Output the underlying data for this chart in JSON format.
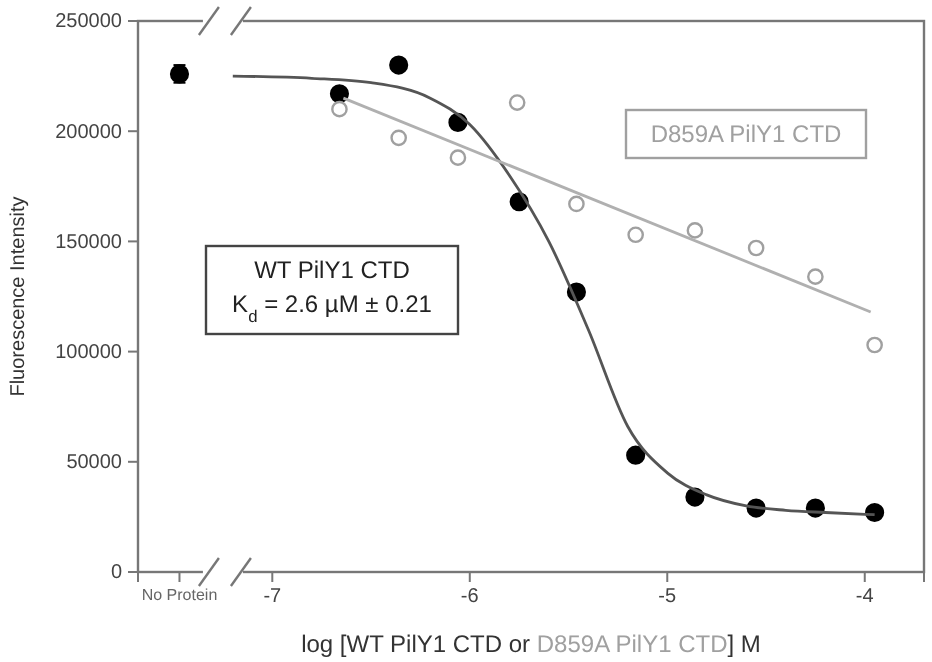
{
  "chart_data": {
    "type": "scatter",
    "xlabel": "log [WT PilY1 CTD or D859A PilY1 CTD] M",
    "ylabel": "Fluorescence Intensity",
    "xlim": [
      -7.68,
      -3.7
    ],
    "xticks": [
      {
        "value": -7.47,
        "label": "No Protein"
      },
      -7,
      -6,
      -5,
      -4
    ],
    "ylim": [
      0,
      250000
    ],
    "yticks": [
      0,
      50000,
      100000,
      150000,
      200000,
      250000
    ],
    "grid": false,
    "legend": false,
    "annotations": [
      "K$_{d}$ = 2.6 µM ± 0.21"
    ],
    "series": [
      {
        "name": "WT PilY1 CTD",
        "marker": "circle",
        "color": "#000000",
        "x": [
          -7.47,
          -6.66,
          -6.36,
          -6.06,
          -5.75,
          -5.46,
          -5.16,
          -4.86,
          -4.55,
          -4.25,
          -3.95
        ],
        "values": [
          226000,
          217000,
          230000,
          204000,
          168000,
          127000,
          53000,
          34000,
          29000,
          29000,
          27000
        ],
        "errors": [
          4000,
          null,
          null,
          null,
          3000,
          3000,
          null,
          null,
          null,
          null,
          null
        ]
      },
      {
        "name": "D859A PilY1 CTD",
        "marker": "circle",
        "color": "#a0a0a0",
        "x": [
          -6.66,
          -6.36,
          -6.06,
          -5.76,
          -5.46,
          -5.16,
          -4.86,
          -4.55,
          -4.25,
          -3.95
        ],
        "values": [
          210000,
          197000,
          188000,
          213000,
          167000,
          153000,
          155000,
          147000,
          134000,
          103000
        ]
      },
      {
        "type": "line",
        "marker": "none",
        "color": "#555555",
        "x": [
          -7.2,
          -6.8,
          -6.5,
          -6.2,
          -6.0,
          -5.8,
          -5.6,
          -5.4,
          -5.2,
          -5.0,
          -4.8,
          -4.6,
          -4.4,
          -4.2,
          -3.95
        ],
        "values": [
          225000,
          224000,
          222000,
          215000,
          203000,
          180000,
          150000,
          110000,
          66000,
          45000,
          35000,
          30000,
          28000,
          27000,
          26000
        ]
      },
      {
        "type": "line",
        "marker": "none",
        "color": "#b0b0b0",
        "x": [
          -6.64,
          -3.97
        ],
        "values": [
          215000,
          118000
        ]
      }
    ]
  }
}
